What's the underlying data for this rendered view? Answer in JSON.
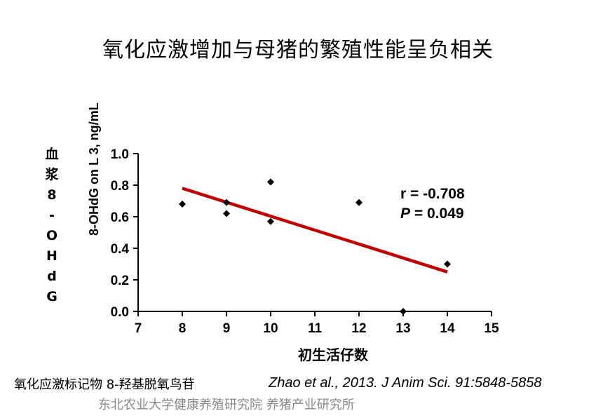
{
  "title": "氧化应激增加与母猪的繁殖性能呈负相关",
  "left_label_chars": [
    "血",
    "浆",
    "8",
    "-",
    "O",
    "H",
    "d",
    "G"
  ],
  "footer": {
    "marker_note": "氧化应激标记物 8-羟基脱氧鸟苷",
    "citation": "Zhao et al., 2013. J Anim Sci. 91:5848-5858",
    "institution": "东北农业大学健康养殖研究院 养猪产业研究所"
  },
  "stats": {
    "r_text": "r = -0.708",
    "p_label": "P",
    "p_value": " = 0.049"
  },
  "chart_data": {
    "type": "scatter",
    "xlabel": "初生活仔数",
    "ylabel": "8-OHdG on L 3, ng/mL",
    "xlim": [
      7,
      15
    ],
    "ylim": [
      0.0,
      1.0
    ],
    "x_ticks": [
      "7",
      "8",
      "9",
      "10",
      "11",
      "12",
      "13",
      "14",
      "15"
    ],
    "y_ticks": [
      "0.0",
      "0.2",
      "0.4",
      "0.6",
      "0.8",
      "1.0"
    ],
    "points": [
      {
        "x": 8,
        "y": 0.68
      },
      {
        "x": 9,
        "y": 0.69
      },
      {
        "x": 9,
        "y": 0.62
      },
      {
        "x": 10,
        "y": 0.82
      },
      {
        "x": 10,
        "y": 0.57
      },
      {
        "x": 12,
        "y": 0.69
      },
      {
        "x": 13,
        "y": 0.0
      },
      {
        "x": 14,
        "y": 0.3
      }
    ],
    "trendline": {
      "x": [
        8,
        14
      ],
      "y": [
        0.78,
        0.25
      ],
      "color": "#c00000"
    },
    "grid": false
  }
}
